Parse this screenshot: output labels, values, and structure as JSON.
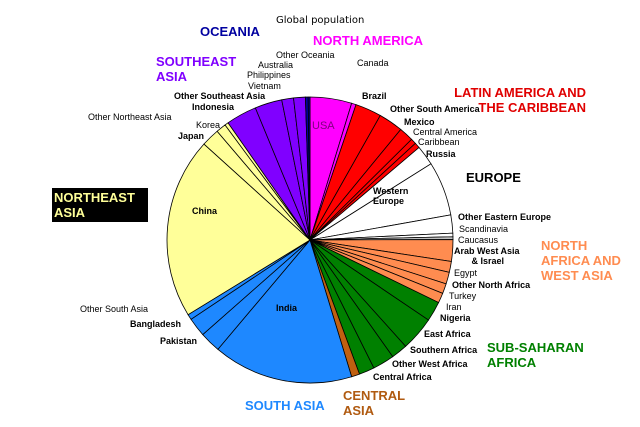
{
  "chart_data": {
    "type": "pie",
    "title": "Global population",
    "slices": [
      {
        "name": "USA",
        "value": 4.6,
        "color": "#ff00ff"
      },
      {
        "name": "Canada",
        "value": 0.5,
        "color": "#ff00ff"
      },
      {
        "name": "Brazil",
        "value": 2.9,
        "color": "#ff0000"
      },
      {
        "name": "Other South America",
        "value": 2.7,
        "color": "#ff0000"
      },
      {
        "name": "Mexico",
        "value": 1.6,
        "color": "#ff0000"
      },
      {
        "name": "Central America",
        "value": 0.6,
        "color": "#ff0000"
      },
      {
        "name": "Caribbean",
        "value": 0.6,
        "color": "#ff0000"
      },
      {
        "name": "Russia",
        "value": 2.2,
        "color": "#ffffff"
      },
      {
        "name": "Western Europe",
        "value": 6.0,
        "color": "#ffffff"
      },
      {
        "name": "Other Eastern Europe",
        "value": 2.0,
        "color": "#ffffff"
      },
      {
        "name": "Scandinavia",
        "value": 0.4,
        "color": "#ffffff"
      },
      {
        "name": "Caucasus",
        "value": 0.3,
        "color": "#c0c0c0"
      },
      {
        "name": "Arab West Asia & Israel",
        "value": 2.4,
        "color": "#ff8c50"
      },
      {
        "name": "Egypt",
        "value": 1.2,
        "color": "#ff8c50"
      },
      {
        "name": "Other North Africa",
        "value": 1.3,
        "color": "#ff8c50"
      },
      {
        "name": "Turkey",
        "value": 1.1,
        "color": "#ff8c50"
      },
      {
        "name": "Iran",
        "value": 1.1,
        "color": "#ff8c50"
      },
      {
        "name": "Nigeria",
        "value": 2.2,
        "color": "#008000"
      },
      {
        "name": "East Africa",
        "value": 3.8,
        "color": "#008000"
      },
      {
        "name": "Southern Africa",
        "value": 1.8,
        "color": "#008000"
      },
      {
        "name": "Other West Africa",
        "value": 2.4,
        "color": "#008000"
      },
      {
        "name": "Central Africa",
        "value": 1.7,
        "color": "#008000"
      },
      {
        "name": "Central Asia",
        "value": 0.9,
        "color": "#c06010"
      },
      {
        "name": "India",
        "value": 15.5,
        "color": "#1e88ff"
      },
      {
        "name": "Pakistan",
        "value": 2.3,
        "color": "#1e88ff"
      },
      {
        "name": "Bangladesh",
        "value": 2.1,
        "color": "#1e88ff"
      },
      {
        "name": "Other South Asia",
        "value": 0.6,
        "color": "#1e88ff"
      },
      {
        "name": "China",
        "value": 20.0,
        "color": "#ffff99"
      },
      {
        "name": "Japan",
        "value": 2.0,
        "color": "#ffff99"
      },
      {
        "name": "Korea",
        "value": 1.1,
        "color": "#ffff99"
      },
      {
        "name": "Other Northeast Asia",
        "value": 0.4,
        "color": "#ffff99"
      },
      {
        "name": "Indonesia",
        "value": 3.4,
        "color": "#8000ff"
      },
      {
        "name": "Other Southeast Asia",
        "value": 3.0,
        "color": "#8000ff"
      },
      {
        "name": "Vietnam",
        "value": 1.3,
        "color": "#8000ff"
      },
      {
        "name": "Philippines",
        "value": 1.3,
        "color": "#8000ff"
      },
      {
        "name": "Australia",
        "value": 0.3,
        "color": "#0000a0"
      },
      {
        "name": "Other Oceania",
        "value": 0.2,
        "color": "#0000a0"
      }
    ],
    "regions": [
      {
        "name": "OCEANIA",
        "color": "#0000a0"
      },
      {
        "name": "NORTH AMERICA",
        "color": "#ff00ff"
      },
      {
        "name": "SOUTHEAST ASIA",
        "color": "#8000ff"
      },
      {
        "name": "LATIN AMERICA AND THE CARIBBEAN",
        "color": "#e00000"
      },
      {
        "name": "EUROPE",
        "color": "#000000"
      },
      {
        "name": "NORTHEAST ASIA",
        "color": "#ffff99"
      },
      {
        "name": "NORTH AFRICA AND WEST ASIA",
        "color": "#ff8c50"
      },
      {
        "name": "SUB-SAHARAN AFRICA",
        "color": "#008000"
      },
      {
        "name": "CENTRAL ASIA",
        "color": "#b05a10"
      },
      {
        "name": "SOUTH ASIA",
        "color": "#1e88ff"
      }
    ]
  }
}
